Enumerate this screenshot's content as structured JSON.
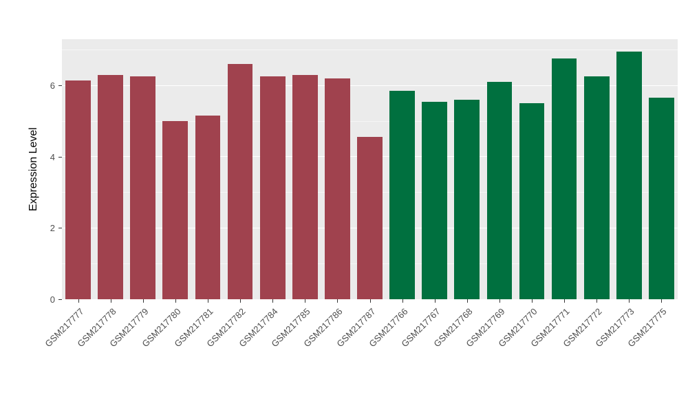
{
  "figure": {
    "background": "#FFFFFF",
    "panel_background": "#EBEBEB",
    "grid_major_color": "#FFFFFF",
    "grid_minor_color": "#F5F5F5",
    "tick_color": "#333333",
    "tick_label_color": "#4D4D4D"
  },
  "axis": {
    "y_title": "Expression Level",
    "y_ticks": [
      0,
      2,
      4,
      6
    ],
    "y_minor_ticks": [
      1,
      3,
      5,
      7
    ],
    "ylim": [
      0,
      7.3
    ]
  },
  "chart_data": {
    "type": "bar",
    "title": "",
    "xlabel": "",
    "ylabel": "Expression Level",
    "ylim": [
      0,
      7.3
    ],
    "grid": true,
    "legend": "none",
    "categories": [
      "GSM217777",
      "GSM217778",
      "GSM217779",
      "GSM217780",
      "GSM217781",
      "GSM217782",
      "GSM217784",
      "GSM217785",
      "GSM217786",
      "GSM217787",
      "GSM217766",
      "GSM217767",
      "GSM217768",
      "GSM217769",
      "GSM217770",
      "GSM217771",
      "GSM217772",
      "GSM217773",
      "GSM217775"
    ],
    "values": [
      6.15,
      6.3,
      6.25,
      5.0,
      5.15,
      6.6,
      6.25,
      6.3,
      6.2,
      4.55,
      5.85,
      5.55,
      5.6,
      6.1,
      5.5,
      6.75,
      6.25,
      6.95,
      5.65
    ],
    "bar_groups": [
      "A",
      "A",
      "A",
      "A",
      "A",
      "A",
      "A",
      "A",
      "A",
      "A",
      "B",
      "B",
      "B",
      "B",
      "B",
      "B",
      "B",
      "B",
      "B"
    ],
    "group_colors": {
      "A": "#A0424E",
      "B": "#00703F"
    }
  }
}
